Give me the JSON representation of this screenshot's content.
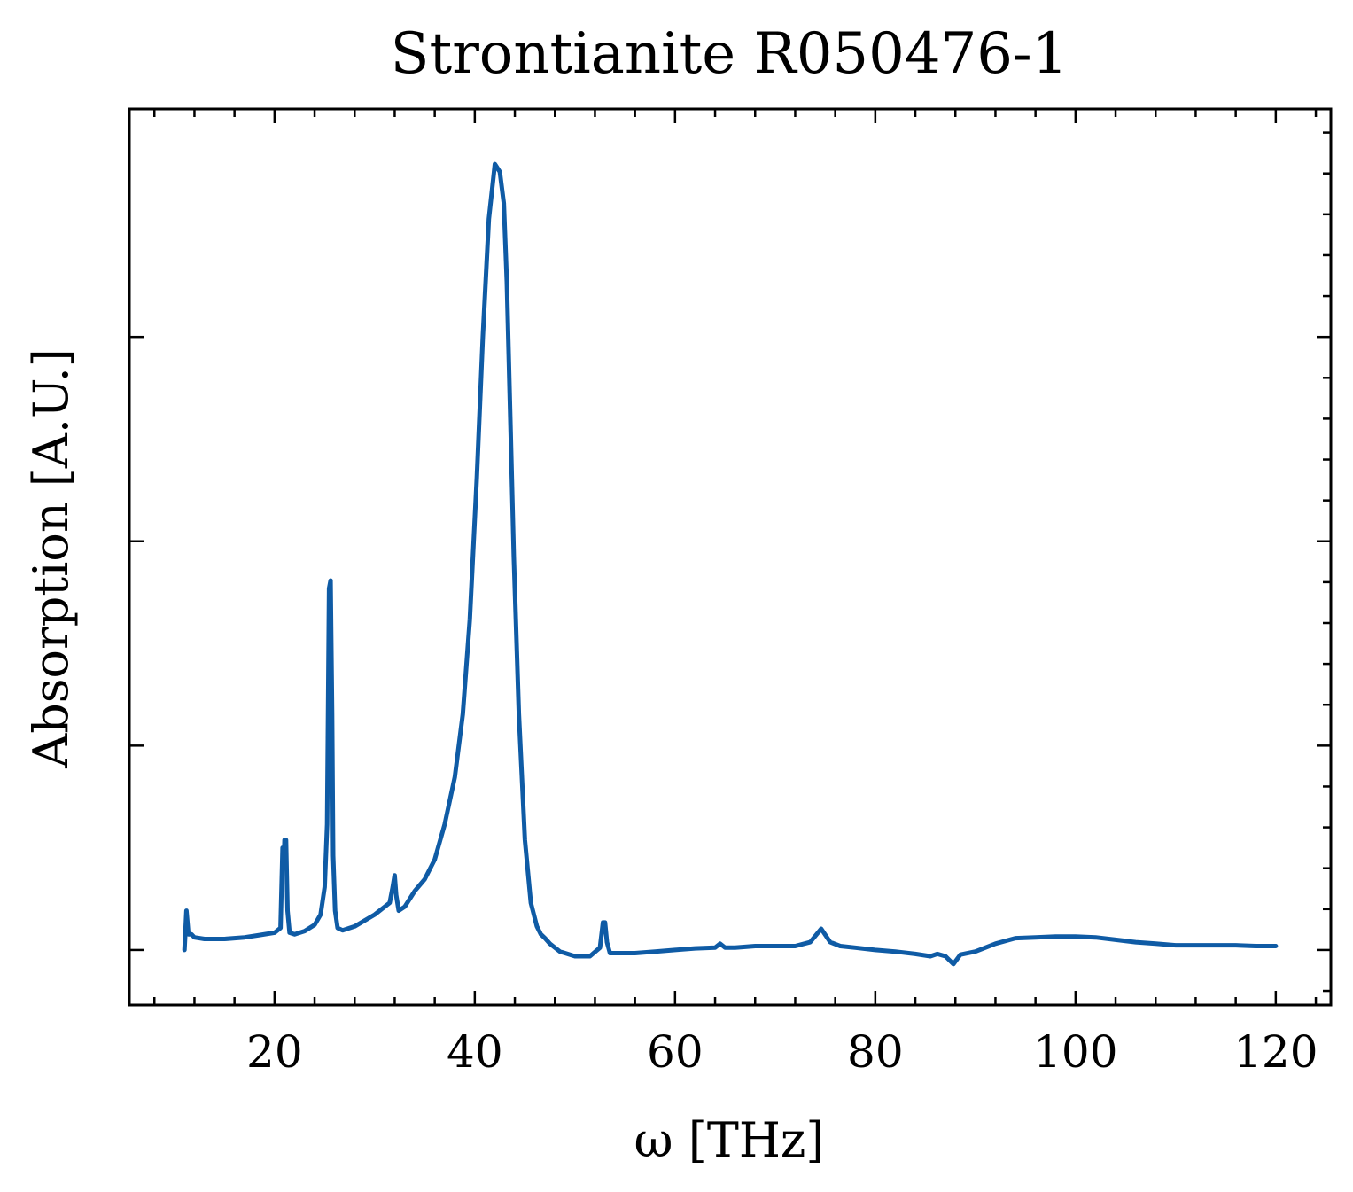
{
  "chart_data": {
    "type": "line",
    "title": "Strontianite R050476-1",
    "xlabel": "ω [THz]",
    "ylabel": "Absorption [A.U.]",
    "xlim": [
      5.5,
      125.5
    ],
    "ylim": [
      -0.07,
      1.07
    ],
    "x_ticks": [
      20,
      40,
      60,
      80,
      100,
      120
    ],
    "x_minor_step": 4,
    "y_ticks": [
      0.0,
      0.26,
      0.52,
      0.78
    ],
    "y_minor_step": 0.052,
    "y_tick_labels_shown": false,
    "grid": false,
    "color": "#0f5ba5",
    "series": [
      {
        "x": [
          11.0,
          11.2,
          11.4,
          11.7,
          12.0,
          13.0,
          15.0,
          17.0,
          18.5,
          20.0,
          20.6,
          20.8,
          20.95,
          21.0,
          21.15,
          21.3,
          21.5,
          22.0,
          23.0,
          24.0,
          24.6,
          25.0,
          25.25,
          25.45,
          25.6,
          25.75,
          25.85,
          26.05,
          26.3,
          26.8,
          28.0,
          30.0,
          31.5,
          31.8,
          32.0,
          32.15,
          32.4,
          33.0,
          34.0,
          35.0,
          36.0,
          37.0,
          38.0,
          38.8,
          39.5,
          40.2,
          40.8,
          41.4,
          42.0,
          42.5,
          42.9,
          43.2,
          43.5,
          43.9,
          44.4,
          45.0,
          45.6,
          46.2,
          46.6,
          47.0,
          47.5,
          48.5,
          50.0,
          51.5,
          52.5,
          52.8,
          53.0,
          53.2,
          53.5,
          54.0,
          56.0,
          58.0,
          60.0,
          62.0,
          64.0,
          64.5,
          65.0,
          66.0,
          68.0,
          70.0,
          72.0,
          73.5,
          74.6,
          75.5,
          76.5,
          78.0,
          80.0,
          82.0,
          84.0,
          85.5,
          86.2,
          87.0,
          87.8,
          88.5,
          90.0,
          92.0,
          94.0,
          96.0,
          98.0,
          100.0,
          102.0,
          104.0,
          106.0,
          108.0,
          110.0,
          112.0,
          114.0,
          116.0,
          118.0,
          120.0
        ],
        "y": [
          0.0,
          0.05,
          0.02,
          0.02,
          0.016,
          0.014,
          0.014,
          0.016,
          0.019,
          0.022,
          0.028,
          0.13,
          0.12,
          0.14,
          0.14,
          0.05,
          0.022,
          0.02,
          0.024,
          0.032,
          0.045,
          0.08,
          0.16,
          0.46,
          0.47,
          0.3,
          0.12,
          0.05,
          0.028,
          0.025,
          0.03,
          0.045,
          0.06,
          0.08,
          0.095,
          0.07,
          0.05,
          0.055,
          0.075,
          0.09,
          0.115,
          0.16,
          0.22,
          0.3,
          0.42,
          0.6,
          0.78,
          0.93,
          1.0,
          0.99,
          0.95,
          0.85,
          0.7,
          0.5,
          0.3,
          0.14,
          0.06,
          0.03,
          0.02,
          0.015,
          0.008,
          -0.002,
          -0.008,
          -0.008,
          0.003,
          0.035,
          0.035,
          0.01,
          -0.004,
          -0.004,
          -0.004,
          -0.002,
          0.0,
          0.002,
          0.003,
          0.008,
          0.003,
          0.003,
          0.005,
          0.005,
          0.005,
          0.01,
          0.027,
          0.01,
          0.005,
          0.003,
          0.0,
          -0.002,
          -0.005,
          -0.008,
          -0.005,
          -0.008,
          -0.018,
          -0.006,
          -0.002,
          0.008,
          0.015,
          0.016,
          0.017,
          0.017,
          0.016,
          0.013,
          0.01,
          0.008,
          0.006,
          0.006,
          0.006,
          0.006,
          0.005,
          0.005
        ]
      }
    ]
  }
}
